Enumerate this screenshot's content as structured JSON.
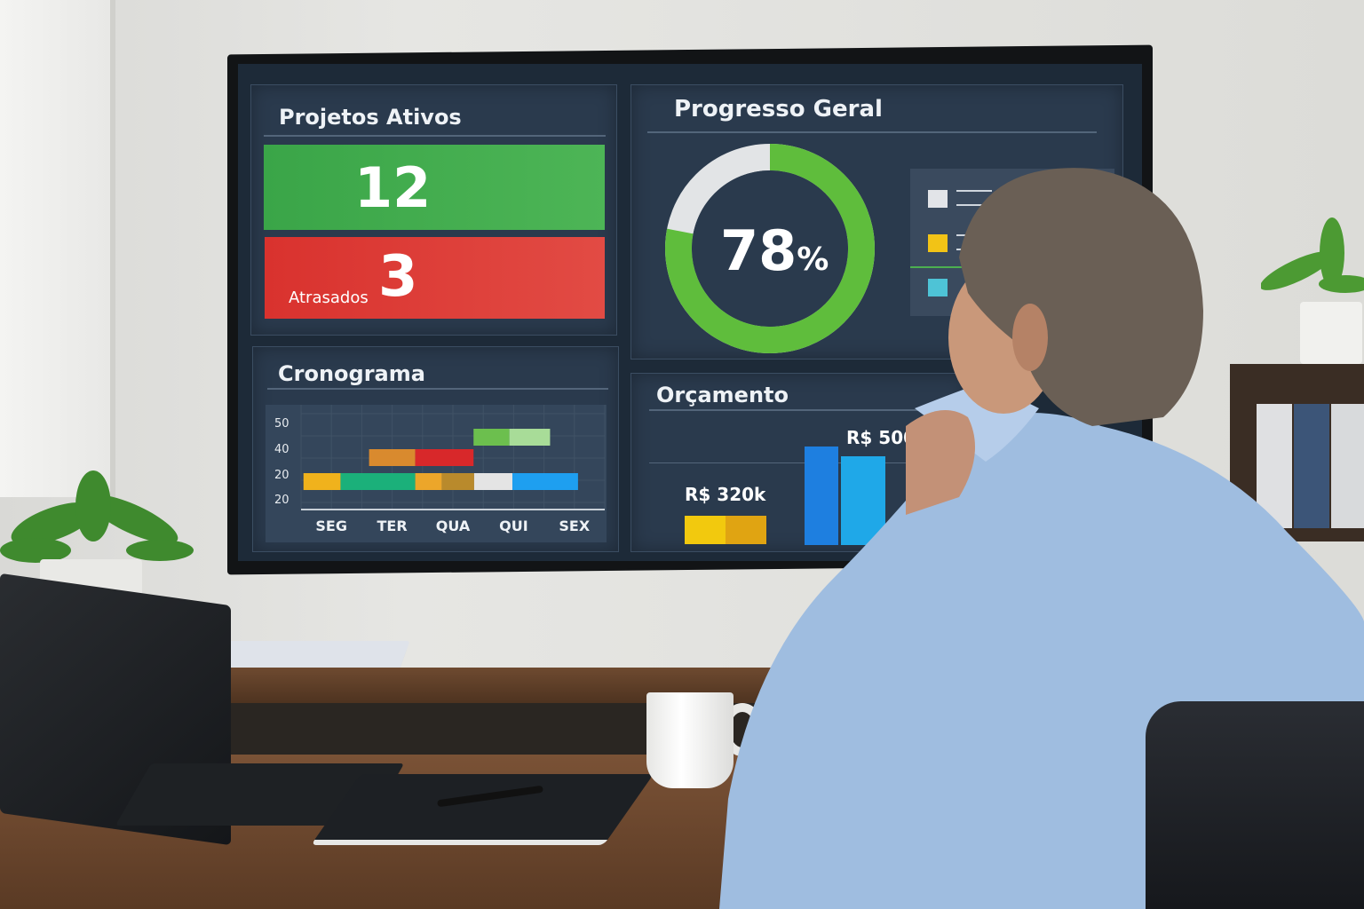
{
  "dashboard": {
    "active_projects": {
      "title": "Projetos Ativos",
      "active_count": "12",
      "delayed_count": "3",
      "delayed_label": "Atrasados",
      "colors": {
        "active": "#43a84a",
        "delayed": "#e0403a"
      }
    },
    "progress": {
      "title": "Progresso Geral",
      "percent_value": "78",
      "percent_sign": "%",
      "fraction": 0.78,
      "legend_colors": [
        "#e2e4e8",
        "#f2c316",
        "#4ec3d6"
      ]
    },
    "schedule": {
      "title": "Cronograma"
    },
    "budget": {
      "title": "Orçamento",
      "label_low": "R$ 320k",
      "label_high": "R$ 500k"
    }
  },
  "chart_data": {
    "type": "gantt",
    "title": "Cronograma",
    "categories": [
      "SEG",
      "TER",
      "QUA",
      "QUI",
      "SEX"
    ],
    "y_tick_labels": [
      "50",
      "40",
      "20",
      "20"
    ],
    "grid": true,
    "rows": [
      {
        "tick": "50",
        "bars": [
          {
            "start": 2.84,
            "end": 3.43,
            "color": "#6cbf4e"
          },
          {
            "start": 3.43,
            "end": 4.1,
            "color": "#a8dc98"
          }
        ]
      },
      {
        "tick": "40",
        "bars": [
          {
            "start": 1.12,
            "end": 1.88,
            "color": "#d98a2e"
          },
          {
            "start": 1.88,
            "end": 2.84,
            "color": "#d8282a"
          }
        ]
      },
      {
        "tick": "20",
        "bars": [
          {
            "start": 0.04,
            "end": 0.65,
            "color": "#f0b21c"
          },
          {
            "start": 0.65,
            "end": 1.88,
            "color": "#1bb07a"
          },
          {
            "start": 1.88,
            "end": 2.32,
            "color": "#eca62a"
          },
          {
            "start": 2.32,
            "end": 2.85,
            "color": "#b98a2c"
          },
          {
            "start": 2.85,
            "end": 3.48,
            "color": "#e4e4e4"
          },
          {
            "start": 3.48,
            "end": 4.56,
            "color": "#1e9ff0"
          }
        ]
      }
    ]
  }
}
